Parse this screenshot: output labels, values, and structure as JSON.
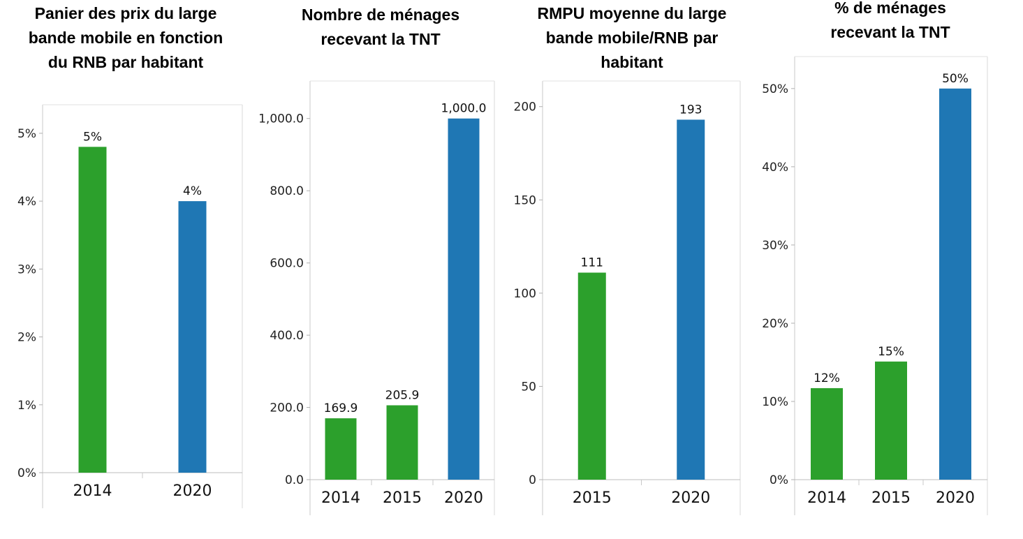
{
  "chart_data": [
    {
      "type": "bar",
      "title": "Panier des prix du large\nbande mobile en fonction\ndu RNB par habitant",
      "categories": [
        "2014",
        "2020"
      ],
      "values": [
        4.8,
        4.0
      ],
      "value_labels": [
        "5%",
        "4%"
      ],
      "colors": [
        "#2ca02c",
        "#1f77b4"
      ],
      "ylim": [
        0,
        5.4
      ],
      "yticks": [
        0,
        1,
        2,
        3,
        4,
        5
      ],
      "ytick_labels": [
        "0%",
        "1%",
        "2%",
        "3%",
        "4%",
        "5%"
      ],
      "grid": false
    },
    {
      "type": "bar",
      "title": "Nombre de ménages\nrecevant la TNT",
      "categories": [
        "2014",
        "2015",
        "2020"
      ],
      "values": [
        169.9,
        205.9,
        1000.0
      ],
      "value_labels": [
        "169.9",
        "205.9",
        "1,000.0"
      ],
      "colors": [
        "#2ca02c",
        "#2ca02c",
        "#1f77b4"
      ],
      "ylim": [
        0,
        1100
      ],
      "yticks": [
        0,
        200,
        400,
        600,
        800,
        1000
      ],
      "ytick_labels": [
        "0.0",
        "200.0",
        "400.0",
        "600.0",
        "800.0",
        "1,000.0"
      ],
      "grid": false
    },
    {
      "type": "bar",
      "title": "RMPU moyenne du large\nbande mobile/RNB par\nhabitant",
      "categories": [
        "2015",
        "2020"
      ],
      "values": [
        111,
        193
      ],
      "value_labels": [
        "111",
        "193"
      ],
      "colors": [
        "#2ca02c",
        "#1f77b4"
      ],
      "ylim": [
        0,
        213
      ],
      "yticks": [
        0,
        50,
        100,
        150,
        200
      ],
      "ytick_labels": [
        "0",
        "50",
        "100",
        "150",
        "200"
      ],
      "grid": false
    },
    {
      "type": "bar",
      "title": "% de ménages\nrecevant la TNT",
      "categories": [
        "2014",
        "2015",
        "2020"
      ],
      "values": [
        11.7,
        15.1,
        50.0
      ],
      "value_labels": [
        "12%",
        "15%",
        "50%"
      ],
      "colors": [
        "#2ca02c",
        "#2ca02c",
        "#1f77b4"
      ],
      "ylim": [
        0,
        54
      ],
      "yticks": [
        0,
        10,
        20,
        30,
        40,
        50
      ],
      "ytick_labels": [
        "0%",
        "10%",
        "20%",
        "30%",
        "40%",
        "50%"
      ],
      "grid": false
    }
  ]
}
